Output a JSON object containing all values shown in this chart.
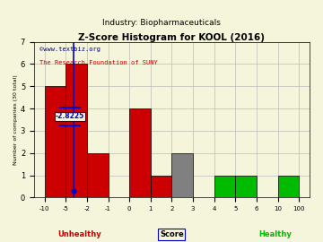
{
  "title": "Z-Score Histogram for KOOL (2016)",
  "subtitle": "Industry: Biopharmaceuticals",
  "xlabel_center": "Score",
  "xlabel_left": "Unhealthy",
  "xlabel_right": "Healthy",
  "ylabel": "Number of companies (30 total)",
  "watermark1": "©www.textbiz.org",
  "watermark2": "The Research Foundation of SUNY",
  "marker_value": -2.8225,
  "marker_label": "-2.8225",
  "bar_positions": [
    0,
    1,
    2,
    3,
    4,
    5,
    6,
    7,
    8,
    9,
    10,
    11
  ],
  "bar_heights": [
    5,
    6,
    2,
    0,
    4,
    1,
    2,
    0,
    1,
    1,
    0,
    1
  ],
  "bar_colors": [
    "#cc0000",
    "#cc0000",
    "#cc0000",
    "#cc0000",
    "#cc0000",
    "#cc0000",
    "#808080",
    "#808080",
    "#00bb00",
    "#00bb00",
    "#00bb00",
    "#00bb00"
  ],
  "xtick_positions": [
    0,
    1,
    2,
    3,
    4,
    5,
    6,
    7,
    8,
    9,
    10,
    11,
    12
  ],
  "xtick_labels": [
    "-10",
    "-5",
    "-2",
    "-1",
    "0",
    "1",
    "2",
    "3",
    "4",
    "5",
    "6",
    "10",
    "100"
  ],
  "marker_x": 1.376,
  "xlim": [
    -0.5,
    12.5
  ],
  "ylim": [
    0,
    7
  ],
  "yticks": [
    0,
    1,
    2,
    3,
    4,
    5,
    6,
    7
  ],
  "bg_color": "#f5f5dc",
  "grid_color": "#bbbbbb",
  "unhealthy_color": "#cc0000",
  "healthy_color": "#00bb00",
  "score_color": "#000000",
  "watermark1_color": "#000080",
  "watermark2_color": "#cc0000",
  "marker_line_color": "#0000cc",
  "bar_width": 1.0
}
